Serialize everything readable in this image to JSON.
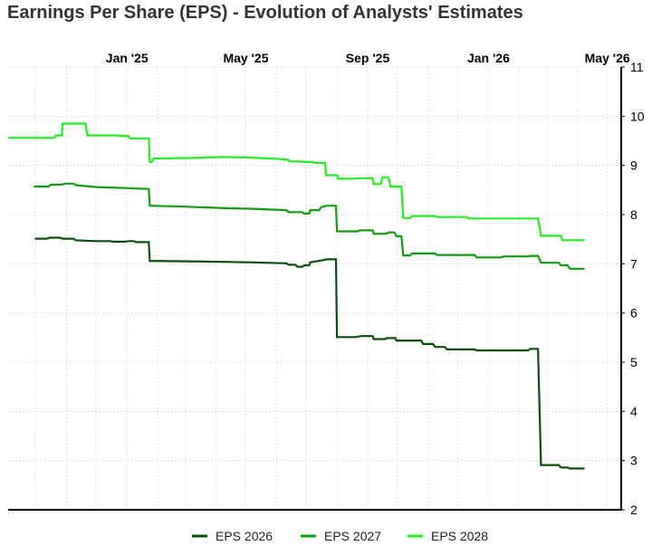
{
  "chart_data": {
    "type": "line",
    "title": "Earnings Per Share (EPS) - Evolution of Analysts' Estimates",
    "x_axis": {
      "type": "date",
      "range": [
        "2024-09-03",
        "2026-05-15"
      ],
      "position": "top",
      "ticks": [
        {
          "date": "2025-01-01",
          "label": "Jan '25"
        },
        {
          "date": "2025-05-01",
          "label": "May '25"
        },
        {
          "date": "2025-09-01",
          "label": "Sep '25"
        },
        {
          "date": "2026-01-01",
          "label": "Jan '26"
        },
        {
          "date": "2026-05-01",
          "label": "May '26"
        }
      ]
    },
    "y_axis": {
      "position": "right",
      "range": [
        2,
        11
      ],
      "ticks": [
        2,
        3,
        4,
        5,
        6,
        7,
        8,
        9,
        10,
        11
      ]
    },
    "grid": true,
    "legend": {
      "placement": "bottom-center"
    },
    "series": [
      {
        "name": "EPS 2026",
        "color": "#0b4d0b",
        "points": [
          [
            "2024-09-30",
            7.51
          ],
          [
            "2024-10-12",
            7.51
          ],
          [
            "2024-10-15",
            7.53
          ],
          [
            "2024-10-25",
            7.53
          ],
          [
            "2024-10-28",
            7.51
          ],
          [
            "2024-11-08",
            7.51
          ],
          [
            "2024-11-10",
            7.48
          ],
          [
            "2024-11-20",
            7.47
          ],
          [
            "2024-12-01",
            7.46
          ],
          [
            "2024-12-15",
            7.46
          ],
          [
            "2024-12-18",
            7.45
          ],
          [
            "2024-12-30",
            7.45
          ],
          [
            "2025-01-02",
            7.46
          ],
          [
            "2025-01-08",
            7.46
          ],
          [
            "2025-01-10",
            7.44
          ],
          [
            "2025-01-23",
            7.44
          ],
          [
            "2025-01-24",
            7.06
          ],
          [
            "2025-03-03",
            7.05
          ],
          [
            "2025-04-10",
            7.04
          ],
          [
            "2025-05-05",
            7.03
          ],
          [
            "2025-06-11",
            7.01
          ],
          [
            "2025-06-13",
            6.98
          ],
          [
            "2025-06-20",
            6.98
          ],
          [
            "2025-06-22",
            6.94
          ],
          [
            "2025-06-27",
            6.94
          ],
          [
            "2025-06-29",
            6.97
          ],
          [
            "2025-07-04",
            6.97
          ],
          [
            "2025-07-05",
            7.03
          ],
          [
            "2025-07-17",
            7.07
          ],
          [
            "2025-07-22",
            7.09
          ],
          [
            "2025-07-31",
            7.09
          ],
          [
            "2025-08-01",
            5.51
          ],
          [
            "2025-08-20",
            5.51
          ],
          [
            "2025-08-25",
            5.53
          ],
          [
            "2025-09-06",
            5.53
          ],
          [
            "2025-09-07",
            5.47
          ],
          [
            "2025-09-19",
            5.47
          ],
          [
            "2025-09-20",
            5.49
          ],
          [
            "2025-09-29",
            5.49
          ],
          [
            "2025-09-30",
            5.44
          ],
          [
            "2025-10-25",
            5.44
          ],
          [
            "2025-10-27",
            5.37
          ],
          [
            "2025-11-06",
            5.37
          ],
          [
            "2025-11-08",
            5.31
          ],
          [
            "2025-11-18",
            5.31
          ],
          [
            "2025-11-20",
            5.26
          ],
          [
            "2025-12-18",
            5.26
          ],
          [
            "2025-12-20",
            5.24
          ],
          [
            "2026-02-10",
            5.24
          ],
          [
            "2026-02-12",
            5.27
          ],
          [
            "2026-02-20",
            5.27
          ],
          [
            "2026-02-23",
            2.91
          ],
          [
            "2026-03-13",
            2.91
          ],
          [
            "2026-03-15",
            2.86
          ],
          [
            "2026-03-22",
            2.86
          ],
          [
            "2026-03-24",
            2.84
          ],
          [
            "2026-04-08",
            2.84
          ]
        ]
      },
      {
        "name": "EPS 2027",
        "color": "#129b12",
        "points": [
          [
            "2024-09-29",
            8.57
          ],
          [
            "2024-10-14",
            8.57
          ],
          [
            "2024-10-16",
            8.61
          ],
          [
            "2024-10-28",
            8.61
          ],
          [
            "2024-10-30",
            8.63
          ],
          [
            "2024-11-08",
            8.63
          ],
          [
            "2024-11-10",
            8.6
          ],
          [
            "2024-11-20",
            8.58
          ],
          [
            "2024-12-01",
            8.56
          ],
          [
            "2024-12-15",
            8.55
          ],
          [
            "2025-01-01",
            8.54
          ],
          [
            "2025-01-10",
            8.53
          ],
          [
            "2025-01-23",
            8.52
          ],
          [
            "2025-01-24",
            8.18
          ],
          [
            "2025-03-03",
            8.16
          ],
          [
            "2025-04-10",
            8.13
          ],
          [
            "2025-05-05",
            8.12
          ],
          [
            "2025-06-11",
            8.09
          ],
          [
            "2025-06-13",
            8.05
          ],
          [
            "2025-06-27",
            8.05
          ],
          [
            "2025-06-29",
            8.02
          ],
          [
            "2025-07-04",
            8.02
          ],
          [
            "2025-07-05",
            8.09
          ],
          [
            "2025-07-14",
            8.09
          ],
          [
            "2025-07-16",
            8.15
          ],
          [
            "2025-07-22",
            8.18
          ],
          [
            "2025-07-31",
            8.18
          ],
          [
            "2025-08-01",
            7.66
          ],
          [
            "2025-08-22",
            7.66
          ],
          [
            "2025-08-24",
            7.68
          ],
          [
            "2025-09-06",
            7.68
          ],
          [
            "2025-09-07",
            7.61
          ],
          [
            "2025-09-20",
            7.61
          ],
          [
            "2025-09-22",
            7.64
          ],
          [
            "2025-09-28",
            7.64
          ],
          [
            "2025-09-30",
            7.56
          ],
          [
            "2025-10-05",
            7.56
          ],
          [
            "2025-10-07",
            7.17
          ],
          [
            "2025-10-14",
            7.17
          ],
          [
            "2025-10-16",
            7.21
          ],
          [
            "2025-11-08",
            7.21
          ],
          [
            "2025-11-10",
            7.18
          ],
          [
            "2025-12-18",
            7.18
          ],
          [
            "2025-12-20",
            7.13
          ],
          [
            "2026-01-14",
            7.13
          ],
          [
            "2026-01-16",
            7.15
          ],
          [
            "2026-02-10",
            7.15
          ],
          [
            "2026-02-12",
            7.16
          ],
          [
            "2026-02-20",
            7.16
          ],
          [
            "2026-02-23",
            7.02
          ],
          [
            "2026-03-13",
            7.02
          ],
          [
            "2026-03-15",
            6.97
          ],
          [
            "2026-03-22",
            6.97
          ],
          [
            "2026-03-24",
            6.9
          ],
          [
            "2026-04-08",
            6.9
          ]
        ]
      },
      {
        "name": "EPS 2028",
        "color": "#22ee22",
        "points": [
          [
            "2024-09-03",
            9.56
          ],
          [
            "2024-10-20",
            9.56
          ],
          [
            "2024-10-21",
            9.61
          ],
          [
            "2024-10-27",
            9.61
          ],
          [
            "2024-10-28",
            9.85
          ],
          [
            "2024-11-20",
            9.85
          ],
          [
            "2024-11-22",
            9.61
          ],
          [
            "2024-12-22",
            9.61
          ],
          [
            "2024-12-24",
            9.6
          ],
          [
            "2025-01-02",
            9.6
          ],
          [
            "2025-01-04",
            9.55
          ],
          [
            "2025-01-23",
            9.55
          ],
          [
            "2025-01-24",
            9.07
          ],
          [
            "2025-01-26",
            9.07
          ],
          [
            "2025-01-28",
            9.14
          ],
          [
            "2025-03-05",
            9.15
          ],
          [
            "2025-04-08",
            9.17
          ],
          [
            "2025-05-05",
            9.16
          ],
          [
            "2025-06-05",
            9.13
          ],
          [
            "2025-06-07",
            9.12
          ],
          [
            "2025-06-12",
            9.12
          ],
          [
            "2025-06-14",
            9.08
          ],
          [
            "2025-06-26",
            9.08
          ],
          [
            "2025-06-28",
            9.07
          ],
          [
            "2025-07-08",
            9.07
          ],
          [
            "2025-07-09",
            9.05
          ],
          [
            "2025-07-20",
            9.05
          ],
          [
            "2025-07-21",
            8.8
          ],
          [
            "2025-08-01",
            8.8
          ],
          [
            "2025-08-02",
            8.73
          ],
          [
            "2025-08-20",
            8.73
          ],
          [
            "2025-08-22",
            8.74
          ],
          [
            "2025-09-06",
            8.74
          ],
          [
            "2025-09-07",
            8.62
          ],
          [
            "2025-09-14",
            8.62
          ],
          [
            "2025-09-16",
            8.76
          ],
          [
            "2025-09-22",
            8.76
          ],
          [
            "2025-09-24",
            8.57
          ],
          [
            "2025-10-05",
            8.57
          ],
          [
            "2025-10-07",
            7.93
          ],
          [
            "2025-10-14",
            7.93
          ],
          [
            "2025-10-16",
            7.97
          ],
          [
            "2025-11-08",
            7.97
          ],
          [
            "2025-11-10",
            7.95
          ],
          [
            "2025-12-10",
            7.95
          ],
          [
            "2025-12-12",
            7.92
          ],
          [
            "2026-02-20",
            7.92
          ],
          [
            "2026-02-23",
            7.57
          ],
          [
            "2026-03-15",
            7.57
          ],
          [
            "2026-03-17",
            7.48
          ],
          [
            "2026-04-08",
            7.48
          ]
        ]
      }
    ]
  }
}
